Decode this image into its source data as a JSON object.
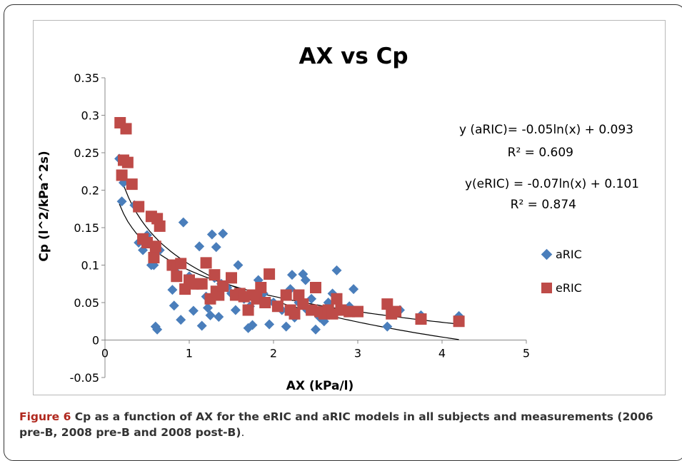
{
  "chart_data": {
    "type": "scatter",
    "title": "AX vs Cp",
    "xlabel": "AX (kPa/l)",
    "ylabel": "Cp (l^2/kPa^2s)",
    "xlim": [
      0,
      5
    ],
    "ylim": [
      -0.05,
      0.35
    ],
    "x_ticks": [
      "0",
      "1",
      "2",
      "3",
      "4",
      "5"
    ],
    "y_ticks": [
      "-0.05",
      "0",
      "0.05",
      "0.1",
      "0.15",
      "0.2",
      "0.25",
      "0.3",
      "0.35"
    ],
    "grid": false,
    "legend_position": "right",
    "series": [
      {
        "name": "aRIC",
        "marker": "diamond",
        "color": "#4a7ebb",
        "points": [
          [
            0.17,
            0.242
          ],
          [
            0.2,
            0.185
          ],
          [
            0.22,
            0.21
          ],
          [
            0.35,
            0.18
          ],
          [
            0.4,
            0.13
          ],
          [
            0.45,
            0.12
          ],
          [
            0.5,
            0.14
          ],
          [
            0.55,
            0.1
          ],
          [
            0.58,
            0.1
          ],
          [
            0.6,
            0.018
          ],
          [
            0.62,
            0.014
          ],
          [
            0.65,
            0.12
          ],
          [
            0.8,
            0.067
          ],
          [
            0.82,
            0.046
          ],
          [
            0.85,
            0.09
          ],
          [
            0.9,
            0.027
          ],
          [
            0.93,
            0.157
          ],
          [
            1.0,
            0.085
          ],
          [
            1.05,
            0.039
          ],
          [
            1.1,
            0.074
          ],
          [
            1.12,
            0.125
          ],
          [
            1.15,
            0.019
          ],
          [
            1.2,
            0.058
          ],
          [
            1.22,
            0.043
          ],
          [
            1.25,
            0.033
          ],
          [
            1.27,
            0.141
          ],
          [
            1.3,
            0.083
          ],
          [
            1.32,
            0.124
          ],
          [
            1.35,
            0.031
          ],
          [
            1.38,
            0.075
          ],
          [
            1.4,
            0.142
          ],
          [
            1.45,
            0.07
          ],
          [
            1.5,
            0.062
          ],
          [
            1.55,
            0.04
          ],
          [
            1.58,
            0.1
          ],
          [
            1.6,
            0.064
          ],
          [
            1.65,
            0.055
          ],
          [
            1.7,
            0.016
          ],
          [
            1.72,
            0.045
          ],
          [
            1.75,
            0.02
          ],
          [
            1.8,
            0.06
          ],
          [
            1.82,
            0.08
          ],
          [
            1.88,
            0.062
          ],
          [
            1.95,
            0.021
          ],
          [
            2.0,
            0.05
          ],
          [
            2.05,
            0.045
          ],
          [
            2.1,
            0.04
          ],
          [
            2.15,
            0.018
          ],
          [
            2.2,
            0.068
          ],
          [
            2.22,
            0.087
          ],
          [
            2.25,
            0.03
          ],
          [
            2.3,
            0.05
          ],
          [
            2.35,
            0.088
          ],
          [
            2.38,
            0.08
          ],
          [
            2.4,
            0.04
          ],
          [
            2.45,
            0.055
          ],
          [
            2.5,
            0.014
          ],
          [
            2.55,
            0.03
          ],
          [
            2.6,
            0.025
          ],
          [
            2.65,
            0.05
          ],
          [
            2.7,
            0.062
          ],
          [
            2.75,
            0.093
          ],
          [
            2.8,
            0.04
          ],
          [
            2.9,
            0.045
          ],
          [
            2.95,
            0.068
          ],
          [
            3.35,
            0.018
          ],
          [
            3.5,
            0.04
          ],
          [
            3.75,
            0.033
          ],
          [
            4.2,
            0.032
          ]
        ]
      },
      {
        "name": "eRIC",
        "marker": "square",
        "color": "#be4b48",
        "points": [
          [
            0.18,
            0.29
          ],
          [
            0.2,
            0.22
          ],
          [
            0.22,
            0.24
          ],
          [
            0.25,
            0.282
          ],
          [
            0.27,
            0.237
          ],
          [
            0.32,
            0.208
          ],
          [
            0.4,
            0.178
          ],
          [
            0.45,
            0.135
          ],
          [
            0.5,
            0.13
          ],
          [
            0.55,
            0.165
          ],
          [
            0.58,
            0.11
          ],
          [
            0.6,
            0.125
          ],
          [
            0.62,
            0.162
          ],
          [
            0.65,
            0.152
          ],
          [
            0.8,
            0.1
          ],
          [
            0.85,
            0.085
          ],
          [
            0.9,
            0.102
          ],
          [
            0.95,
            0.068
          ],
          [
            1.0,
            0.08
          ],
          [
            1.05,
            0.075
          ],
          [
            1.1,
            0.075
          ],
          [
            1.15,
            0.075
          ],
          [
            1.2,
            0.103
          ],
          [
            1.25,
            0.055
          ],
          [
            1.3,
            0.087
          ],
          [
            1.32,
            0.065
          ],
          [
            1.35,
            0.06
          ],
          [
            1.4,
            0.072
          ],
          [
            1.5,
            0.083
          ],
          [
            1.55,
            0.06
          ],
          [
            1.6,
            0.062
          ],
          [
            1.65,
            0.058
          ],
          [
            1.7,
            0.04
          ],
          [
            1.75,
            0.06
          ],
          [
            1.8,
            0.055
          ],
          [
            1.85,
            0.07
          ],
          [
            1.9,
            0.05
          ],
          [
            1.95,
            0.088
          ],
          [
            2.05,
            0.045
          ],
          [
            2.15,
            0.06
          ],
          [
            2.2,
            0.04
          ],
          [
            2.25,
            0.035
          ],
          [
            2.3,
            0.06
          ],
          [
            2.35,
            0.048
          ],
          [
            2.45,
            0.04
          ],
          [
            2.5,
            0.07
          ],
          [
            2.55,
            0.038
          ],
          [
            2.6,
            0.035
          ],
          [
            2.65,
            0.04
          ],
          [
            2.7,
            0.035
          ],
          [
            2.75,
            0.055
          ],
          [
            2.8,
            0.04
          ],
          [
            2.9,
            0.038
          ],
          [
            3.0,
            0.038
          ],
          [
            3.35,
            0.048
          ],
          [
            3.4,
            0.035
          ],
          [
            3.45,
            0.038
          ],
          [
            3.75,
            0.028
          ],
          [
            4.2,
            0.025
          ]
        ]
      }
    ],
    "trendlines": [
      {
        "series": "aRIC",
        "a": -0.05,
        "b": 0.093
      },
      {
        "series": "eRIC",
        "a": -0.07,
        "b": 0.101
      }
    ],
    "annotations": [
      "y (aRIC)= -0.05ln(x) + 0.093",
      "R² = 0.609",
      "y(eRIC) = -0.07ln(x) + 0.101",
      "R² = 0.874"
    ]
  },
  "caption": {
    "label": "Figure 6",
    "text": " Cp as a function of AX for the eRIC and aRIC models in all subjects and measurements (2006 pre-B, 2008 pre-B and 2008 post-B)",
    "tail": "."
  }
}
